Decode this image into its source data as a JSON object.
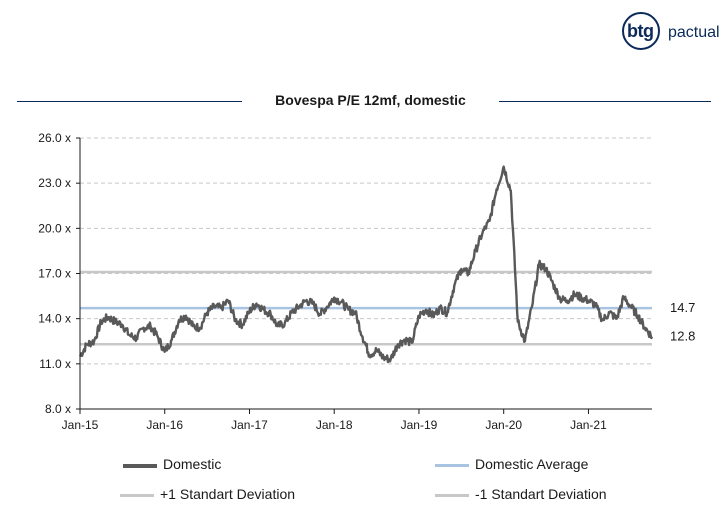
{
  "brand": {
    "logo_text": "btg",
    "logo_suffix": "pactual"
  },
  "chart_data": {
    "type": "line",
    "title": "Bovespa P/E 12mf, domestic",
    "xlabel": "",
    "ylabel": "",
    "x_start": "2015-01",
    "x_end": "2021-10",
    "xticks": [
      "Jan-15",
      "Jan-16",
      "Jan-17",
      "Jan-18",
      "Jan-19",
      "Jan-20",
      "Jan-21"
    ],
    "yticks": [
      "8.0 x",
      "11.0 x",
      "14.0 x",
      "17.0 x",
      "20.0 x",
      "23.0 x",
      "26.0 x"
    ],
    "ylim": [
      8,
      26
    ],
    "grid": true,
    "legend_position": "bottom",
    "series": [
      {
        "name": "Domestic",
        "color": "#595959",
        "points": [
          [
            "2015-01",
            11.5
          ],
          [
            "2015-02",
            12.3
          ],
          [
            "2015-03",
            12.5
          ],
          [
            "2015-04",
            13.8
          ],
          [
            "2015-05",
            14.1
          ],
          [
            "2015-06",
            13.8
          ],
          [
            "2015-07",
            13.6
          ],
          [
            "2015-08",
            12.9
          ],
          [
            "2015-09",
            12.7
          ],
          [
            "2015-10",
            13.4
          ],
          [
            "2015-11",
            13.5
          ],
          [
            "2015-12",
            12.8
          ],
          [
            "2016-01",
            11.8
          ],
          [
            "2016-02",
            12.6
          ],
          [
            "2016-03",
            13.9
          ],
          [
            "2016-04",
            14.2
          ],
          [
            "2016-05",
            13.5
          ],
          [
            "2016-06",
            13.4
          ],
          [
            "2016-07",
            14.4
          ],
          [
            "2016-08",
            14.8
          ],
          [
            "2016-09",
            14.7
          ],
          [
            "2016-10",
            15.2
          ],
          [
            "2016-11",
            13.9
          ],
          [
            "2016-12",
            13.6
          ],
          [
            "2017-01",
            14.5
          ],
          [
            "2017-02",
            15.0
          ],
          [
            "2017-03",
            14.6
          ],
          [
            "2017-04",
            14.3
          ],
          [
            "2017-05",
            13.5
          ],
          [
            "2017-06",
            13.7
          ],
          [
            "2017-07",
            14.4
          ],
          [
            "2017-08",
            14.8
          ],
          [
            "2017-09",
            15.2
          ],
          [
            "2017-10",
            15.0
          ],
          [
            "2017-11",
            14.3
          ],
          [
            "2017-12",
            14.8
          ],
          [
            "2018-01",
            15.4
          ],
          [
            "2018-02",
            15.1
          ],
          [
            "2018-03",
            14.6
          ],
          [
            "2018-04",
            14.4
          ],
          [
            "2018-05",
            12.8
          ],
          [
            "2018-06",
            11.6
          ],
          [
            "2018-07",
            11.9
          ],
          [
            "2018-08",
            11.4
          ],
          [
            "2018-09",
            11.3
          ],
          [
            "2018-10",
            12.3
          ],
          [
            "2018-11",
            12.6
          ],
          [
            "2018-12",
            12.4
          ],
          [
            "2019-01",
            14.2
          ],
          [
            "2019-02",
            14.6
          ],
          [
            "2019-03",
            14.2
          ],
          [
            "2019-04",
            14.7
          ],
          [
            "2019-05",
            14.4
          ],
          [
            "2019-06",
            16.2
          ],
          [
            "2019-07",
            17.3
          ],
          [
            "2019-08",
            17.0
          ],
          [
            "2019-09",
            18.5
          ],
          [
            "2019-10",
            19.7
          ],
          [
            "2019-11",
            20.5
          ],
          [
            "2019-12",
            22.6
          ],
          [
            "2020-01",
            24.1
          ],
          [
            "2020-02",
            22.5
          ],
          [
            "2020-03",
            13.8
          ],
          [
            "2020-04",
            12.5
          ],
          [
            "2020-05",
            14.8
          ],
          [
            "2020-06",
            17.6
          ],
          [
            "2020-07",
            17.3
          ],
          [
            "2020-08",
            16.3
          ],
          [
            "2020-09",
            15.3
          ],
          [
            "2020-10",
            15.2
          ],
          [
            "2020-11",
            15.6
          ],
          [
            "2020-12",
            15.4
          ],
          [
            "2021-01",
            15.2
          ],
          [
            "2021-02",
            14.9
          ],
          [
            "2021-03",
            13.9
          ],
          [
            "2021-04",
            14.4
          ],
          [
            "2021-05",
            14.0
          ],
          [
            "2021-06",
            15.4
          ],
          [
            "2021-07",
            14.8
          ],
          [
            "2021-08",
            14.2
          ],
          [
            "2021-09",
            13.4
          ],
          [
            "2021-10",
            12.8
          ]
        ]
      },
      {
        "name": "Domestic Average",
        "color": "#a9c4e2",
        "value": 14.7
      },
      {
        "name": "+1 Standart Deviation",
        "color": "#c8c8c8",
        "value": 17.1
      },
      {
        "name": "-1 Standart Deviation",
        "color": "#c8c8c8",
        "value": 12.3
      }
    ],
    "end_labels": [
      "14.7",
      "12.8"
    ]
  }
}
